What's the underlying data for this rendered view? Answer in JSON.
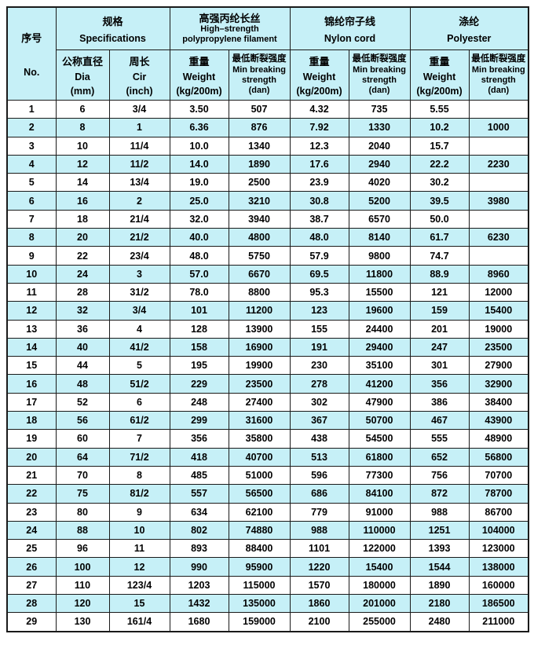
{
  "colors": {
    "header_bg": "#c6f0f7",
    "row_alt_bg": "#c6f0f7",
    "row_bg": "#ffffff",
    "border": "#1a1a1a",
    "text": "#000000"
  },
  "table": {
    "corner": {
      "zh": "序号",
      "en": "No."
    },
    "groups": {
      "spec": {
        "zh": "规格",
        "en": "Specifications"
      },
      "pp": {
        "zh": "高强丙纶长丝",
        "en1": "High–strength",
        "en2": "polypropylene filament"
      },
      "nylon": {
        "zh": "锦纶帘子线",
        "en": "Nylon cord"
      },
      "poly": {
        "zh": "涤纶",
        "en": "Polyester"
      }
    },
    "sub_headers": [
      {
        "lines": [
          "公称直径",
          "Dia",
          "(mm)"
        ]
      },
      {
        "lines": [
          "周长",
          "Cir",
          "(inch)"
        ]
      },
      {
        "lines": [
          "重量",
          "Weight",
          "(kg/200m)"
        ]
      },
      {
        "lines": [
          "最低断裂强度",
          "Min breaking",
          "strength",
          "(dan)"
        ]
      },
      {
        "lines": [
          "重量",
          "Weight",
          "(kg/200m)"
        ]
      },
      {
        "lines": [
          "最低断裂强度",
          "Min breaking",
          "strength",
          "(dan)"
        ]
      },
      {
        "lines": [
          "重量",
          "Weight",
          "(kg/200m)"
        ]
      },
      {
        "lines": [
          "最低断裂强度",
          "Min breaking",
          "strength",
          "(dan)"
        ]
      }
    ],
    "rows": [
      [
        "1",
        "6",
        "3/4",
        "3.50",
        "507",
        "4.32",
        "735",
        "5.55",
        ""
      ],
      [
        "2",
        "8",
        "1",
        "6.36",
        "876",
        "7.92",
        "1330",
        "10.2",
        "1000"
      ],
      [
        "3",
        "10",
        "11/4",
        "10.0",
        "1340",
        "12.3",
        "2040",
        "15.7",
        ""
      ],
      [
        "4",
        "12",
        "11/2",
        "14.0",
        "1890",
        "17.6",
        "2940",
        "22.2",
        "2230"
      ],
      [
        "5",
        "14",
        "13/4",
        "19.0",
        "2500",
        "23.9",
        "4020",
        "30.2",
        ""
      ],
      [
        "6",
        "16",
        "2",
        "25.0",
        "3210",
        "30.8",
        "5200",
        "39.5",
        "3980"
      ],
      [
        "7",
        "18",
        "21/4",
        "32.0",
        "3940",
        "38.7",
        "6570",
        "50.0",
        ""
      ],
      [
        "8",
        "20",
        "21/2",
        "40.0",
        "4800",
        "48.0",
        "8140",
        "61.7",
        "6230"
      ],
      [
        "9",
        "22",
        "23/4",
        "48.0",
        "5750",
        "57.9",
        "9800",
        "74.7",
        ""
      ],
      [
        "10",
        "24",
        "3",
        "57.0",
        "6670",
        "69.5",
        "11800",
        "88.9",
        "8960"
      ],
      [
        "11",
        "28",
        "31/2",
        "78.0",
        "8800",
        "95.3",
        "15500",
        "121",
        "12000"
      ],
      [
        "12",
        "32",
        "3/4",
        "101",
        "11200",
        "123",
        "19600",
        "159",
        "15400"
      ],
      [
        "13",
        "36",
        "4",
        "128",
        "13900",
        "155",
        "24400",
        "201",
        "19000"
      ],
      [
        "14",
        "40",
        "41/2",
        "158",
        "16900",
        "191",
        "29400",
        "247",
        "23500"
      ],
      [
        "15",
        "44",
        "5",
        "195",
        "19900",
        "230",
        "35100",
        "301",
        "27900"
      ],
      [
        "16",
        "48",
        "51/2",
        "229",
        "23500",
        "278",
        "41200",
        "356",
        "32900"
      ],
      [
        "17",
        "52",
        "6",
        "248",
        "27400",
        "302",
        "47900",
        "386",
        "38400"
      ],
      [
        "18",
        "56",
        "61/2",
        "299",
        "31600",
        "367",
        "50700",
        "467",
        "43900"
      ],
      [
        "19",
        "60",
        "7",
        "356",
        "35800",
        "438",
        "54500",
        "555",
        "48900"
      ],
      [
        "20",
        "64",
        "71/2",
        "418",
        "40700",
        "513",
        "61800",
        "652",
        "56800"
      ],
      [
        "21",
        "70",
        "8",
        "485",
        "51000",
        "596",
        "77300",
        "756",
        "70700"
      ],
      [
        "22",
        "75",
        "81/2",
        "557",
        "56500",
        "686",
        "84100",
        "872",
        "78700"
      ],
      [
        "23",
        "80",
        "9",
        "634",
        "62100",
        "779",
        "91000",
        "988",
        "86700"
      ],
      [
        "24",
        "88",
        "10",
        "802",
        "74880",
        "988",
        "110000",
        "1251",
        "104000"
      ],
      [
        "25",
        "96",
        "11",
        "893",
        "88400",
        "1101",
        "122000",
        "1393",
        "123000"
      ],
      [
        "26",
        "100",
        "12",
        "990",
        "95900",
        "1220",
        "15400",
        "1544",
        "138000"
      ],
      [
        "27",
        "110",
        "123/4",
        "1203",
        "115000",
        "1570",
        "180000",
        "1890",
        "160000"
      ],
      [
        "28",
        "120",
        "15",
        "1432",
        "135000",
        "1860",
        "201000",
        "2180",
        "186500"
      ],
      [
        "29",
        "130",
        "161/4",
        "1680",
        "159000",
        "2100",
        "255000",
        "2480",
        "211000"
      ]
    ]
  }
}
